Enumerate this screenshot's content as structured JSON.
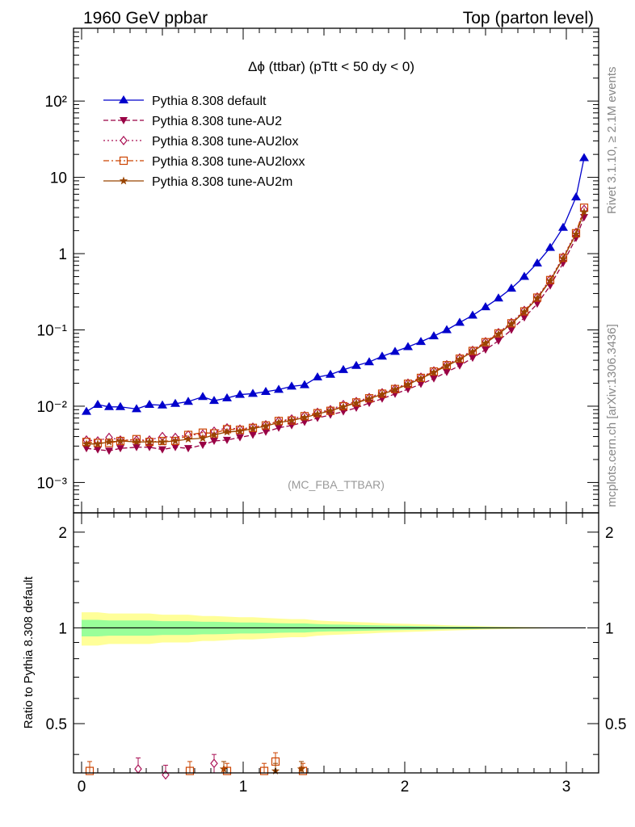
{
  "header": {
    "left": "1960 GeV ppbar",
    "right": "Top (parton level)"
  },
  "side_labels": {
    "rivet": "Rivet 3.1.10, ≥ 2.1M events",
    "mcplots": "mcplots.cern.ch [arXiv:1306.3436]"
  },
  "chart_data": {
    "type": "line",
    "title": "Δϕ (ttbar) (pTtt < 50 dy < 0)",
    "watermark": "(MC_FBA_TTBAR)",
    "y_scale": "log",
    "ylim": [
      0.0004,
      900
    ],
    "y_tick_labels": [
      "10⁻³",
      "10⁻²",
      "10⁻¹",
      "1",
      "10",
      "10²"
    ],
    "xlim": [
      -0.05,
      3.2
    ],
    "x_ticks": [
      0,
      1,
      2,
      3
    ],
    "x": [
      0.03,
      0.1,
      0.17,
      0.24,
      0.34,
      0.42,
      0.5,
      0.58,
      0.66,
      0.75,
      0.82,
      0.9,
      0.98,
      1.06,
      1.14,
      1.22,
      1.3,
      1.38,
      1.46,
      1.54,
      1.62,
      1.7,
      1.78,
      1.86,
      1.94,
      2.02,
      2.1,
      2.18,
      2.26,
      2.34,
      2.42,
      2.5,
      2.58,
      2.66,
      2.74,
      2.82,
      2.9,
      2.98,
      3.06,
      3.11
    ],
    "series": [
      {
        "name": "Pythia 8.308 default",
        "color": "#0000cc",
        "marker": "triangle-up",
        "dash": "",
        "values": [
          0.0085,
          0.0105,
          0.0098,
          0.0098,
          0.0092,
          0.0105,
          0.0103,
          0.0108,
          0.0115,
          0.0133,
          0.0118,
          0.0128,
          0.0142,
          0.0146,
          0.0155,
          0.0165,
          0.0182,
          0.019,
          0.024,
          0.026,
          0.03,
          0.034,
          0.038,
          0.045,
          0.052,
          0.06,
          0.07,
          0.083,
          0.1,
          0.125,
          0.155,
          0.2,
          0.26,
          0.35,
          0.5,
          0.75,
          1.2,
          2.2,
          5.5,
          18.0
        ]
      },
      {
        "name": "Pythia 8.308 tune-AU2",
        "color": "#990044",
        "marker": "triangle-down",
        "dash": "6,3",
        "values": [
          0.0028,
          0.0027,
          0.0026,
          0.0028,
          0.0029,
          0.0029,
          0.0027,
          0.0029,
          0.0028,
          0.0031,
          0.0035,
          0.0036,
          0.0039,
          0.0042,
          0.0046,
          0.0052,
          0.0056,
          0.0062,
          0.007,
          0.0077,
          0.0085,
          0.0095,
          0.011,
          0.0125,
          0.0145,
          0.0167,
          0.0195,
          0.023,
          0.028,
          0.034,
          0.043,
          0.055,
          0.072,
          0.1,
          0.145,
          0.22,
          0.38,
          0.75,
          1.6,
          3.0
        ]
      },
      {
        "name": "Pythia 8.308 tune-AU2lox",
        "color": "#aa1155",
        "marker": "diamond",
        "dash": "2,3",
        "values": [
          0.0036,
          0.0035,
          0.0039,
          0.0036,
          0.0036,
          0.0036,
          0.004,
          0.0039,
          0.0042,
          0.0043,
          0.0047,
          0.0052,
          0.005,
          0.0053,
          0.0057,
          0.0064,
          0.0068,
          0.0075,
          0.0083,
          0.009,
          0.0105,
          0.0115,
          0.013,
          0.015,
          0.017,
          0.02,
          0.024,
          0.029,
          0.035,
          0.043,
          0.054,
          0.07,
          0.092,
          0.125,
          0.18,
          0.27,
          0.46,
          0.9,
          1.9,
          3.8
        ]
      },
      {
        "name": "Pythia 8.308 tune-AU2loxx",
        "color": "#cc4400",
        "marker": "square",
        "dash": "7,3,2,3",
        "values": [
          0.0034,
          0.0033,
          0.0033,
          0.0035,
          0.0037,
          0.0034,
          0.0035,
          0.0035,
          0.0042,
          0.0045,
          0.0044,
          0.005,
          0.0049,
          0.0052,
          0.0056,
          0.0064,
          0.0065,
          0.0074,
          0.0081,
          0.0087,
          0.01,
          0.0112,
          0.0127,
          0.0146,
          0.0168,
          0.0197,
          0.0235,
          0.0285,
          0.0345,
          0.042,
          0.053,
          0.069,
          0.09,
          0.122,
          0.175,
          0.265,
          0.45,
          0.88,
          1.85,
          4.0
        ]
      },
      {
        "name": "Pythia 8.308 tune-AU2m",
        "color": "#994400",
        "marker": "star",
        "dash": "",
        "values": [
          0.0032,
          0.0032,
          0.0034,
          0.0035,
          0.0034,
          0.0034,
          0.0034,
          0.0035,
          0.0037,
          0.0038,
          0.0042,
          0.0046,
          0.0047,
          0.0051,
          0.0055,
          0.0061,
          0.0065,
          0.0071,
          0.0079,
          0.0087,
          0.0098,
          0.011,
          0.0125,
          0.0143,
          0.0165,
          0.0193,
          0.023,
          0.0278,
          0.0338,
          0.041,
          0.052,
          0.067,
          0.088,
          0.12,
          0.172,
          0.26,
          0.44,
          0.86,
          1.8,
          3.5
        ]
      }
    ],
    "ratio": {
      "ylabel": "Ratio to Pythia 8.308 default",
      "ylim": [
        0.35,
        2.3
      ],
      "y_ticks": [
        0.5,
        1,
        2
      ],
      "band_outer": [
        0.12,
        0.12,
        0.11,
        0.11,
        0.11,
        0.11,
        0.1,
        0.1,
        0.1,
        0.09,
        0.09,
        0.085,
        0.08,
        0.08,
        0.075,
        0.07,
        0.065,
        0.065,
        0.055,
        0.05,
        0.047,
        0.043,
        0.04,
        0.035,
        0.032,
        0.029,
        0.026,
        0.023,
        0.02,
        0.017,
        0.015,
        0.012,
        0.01,
        0.008,
        0.006,
        0.005,
        0.003,
        0.002,
        0.001,
        0.0006
      ],
      "band_inner": [
        0.06,
        0.06,
        0.055,
        0.055,
        0.055,
        0.055,
        0.05,
        0.05,
        0.05,
        0.045,
        0.045,
        0.043,
        0.04,
        0.04,
        0.038,
        0.035,
        0.033,
        0.033,
        0.028,
        0.025,
        0.024,
        0.022,
        0.02,
        0.018,
        0.016,
        0.015,
        0.013,
        0.012,
        0.01,
        0.009,
        0.008,
        0.006,
        0.005,
        0.004,
        0.003,
        0.0025,
        0.0015,
        0.001,
        0.0005,
        0.0003
      ],
      "band_colors": {
        "outer": "#ffff99",
        "inner": "#99ff99"
      },
      "points": [
        {
          "series": 3,
          "x": 0.05,
          "y": 0.355,
          "err": 0.025
        },
        {
          "series": 2,
          "x": 0.35,
          "y": 0.36,
          "err": 0.03
        },
        {
          "series": 2,
          "x": 0.52,
          "y": 0.345,
          "err": 0.025
        },
        {
          "series": 3,
          "x": 0.67,
          "y": 0.355,
          "err": 0.025
        },
        {
          "series": 2,
          "x": 0.82,
          "y": 0.375,
          "err": 0.025
        },
        {
          "series": 4,
          "x": 0.88,
          "y": 0.36,
          "err": 0.02
        },
        {
          "series": 3,
          "x": 0.9,
          "y": 0.355,
          "err": 0.02
        },
        {
          "series": 3,
          "x": 1.13,
          "y": 0.355,
          "err": 0.02
        },
        {
          "series": 3,
          "x": 1.2,
          "y": 0.38,
          "err": 0.025
        },
        {
          "series": 4,
          "x": 1.2,
          "y": 0.355,
          "err": 0.02
        },
        {
          "series": 3,
          "x": 1.37,
          "y": 0.355,
          "err": 0.02
        },
        {
          "series": 4,
          "x": 1.36,
          "y": 0.36,
          "err": 0.02
        }
      ]
    }
  }
}
